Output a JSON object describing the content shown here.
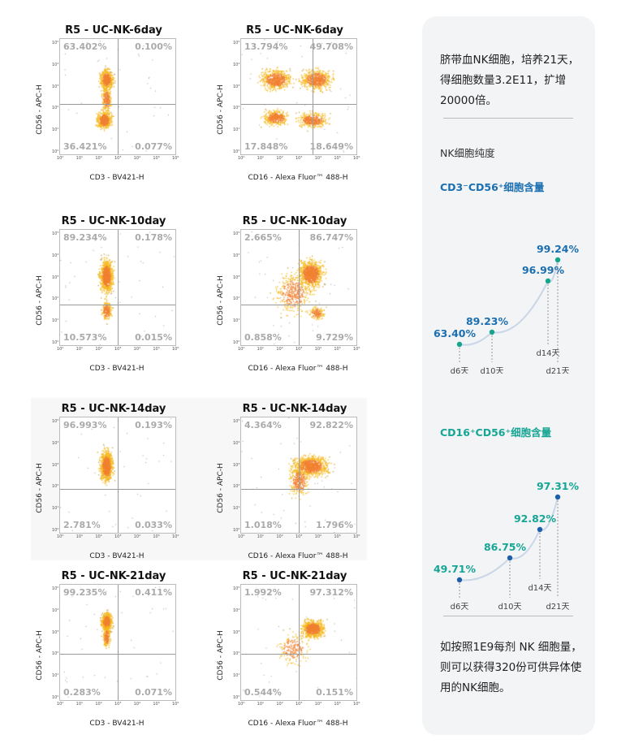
{
  "plots": [
    {
      "title": "R5 - UC-NK-6day",
      "x_label": "CD3 - BV421-H",
      "y_label": "CD56 - APC-H",
      "quadrants": [
        "63.402%",
        "0.100%",
        "36.421%",
        "0.077%"
      ]
    },
    {
      "title": "R5 - UC-NK-6day",
      "x_label": "CD16 - Alexa Fluor™ 488-H",
      "y_label": "CD56 - APC-H",
      "quadrants": [
        "13.794%",
        "49.708%",
        "17.848%",
        "18.649%"
      ]
    },
    {
      "title": "R5 - UC-NK-10day",
      "x_label": "CD3 - BV421-H",
      "y_label": "CD56 - APC-H",
      "quadrants": [
        "89.234%",
        "0.178%",
        "10.573%",
        "0.015%"
      ]
    },
    {
      "title": "R5 - UC-NK-10day",
      "x_label": "CD16 - Alexa Fluor™ 488-H",
      "y_label": "CD56 - APC-H",
      "quadrants": [
        "2.665%",
        "86.747%",
        "0.858%",
        "9.729%"
      ]
    },
    {
      "title": "R5 - UC-NK-14day",
      "x_label": "CD3 - BV421-H",
      "y_label": "CD56 - APC-H",
      "quadrants": [
        "96.993%",
        "0.193%",
        "2.781%",
        "0.033%"
      ]
    },
    {
      "title": "R5 - UC-NK-14day",
      "x_label": "CD16 - Alexa Fluor™ 488-H",
      "y_label": "CD56 - APC-H",
      "quadrants": [
        "4.364%",
        "92.822%",
        "1.018%",
        "1.796%"
      ]
    },
    {
      "title": "R5 - UC-NK-21day",
      "x_label": "CD3 - BV421-H",
      "y_label": "CD56 - APC-H",
      "quadrants": [
        "99.235%",
        "0.411%",
        "0.283%",
        "0.071%"
      ]
    },
    {
      "title": "R5 - UC-NK-21day",
      "x_label": "CD16 - Alexa Fluor™ 488-H",
      "y_label": "CD56 - APC-H",
      "quadrants": [
        "1.992%",
        "97.312%",
        "0.544%",
        "0.151%"
      ]
    }
  ],
  "x_ticks": [
    "10⁰",
    "10¹",
    "10²",
    "10³",
    "10⁴",
    "10⁵",
    "10⁶"
  ],
  "y_ticks": [
    "10⁰",
    "10¹",
    "10²",
    "10³",
    "10⁴",
    "10⁵"
  ],
  "panel": {
    "intro": "脐带血NK细胞，培养21天，得细胞数量3.2E11，扩增20000倍。",
    "purity_label": "NK细胞纯度",
    "footer": "如按照1E9每剂 NK 细胞量，则可以获得320份可供异体使用的NK细胞。"
  },
  "chart_data": [
    {
      "type": "line",
      "title": "CD3⁻CD56⁺细胞含量",
      "categories": [
        "d6天",
        "d10天",
        "d14天",
        "d21天"
      ],
      "values": [
        63.4,
        89.23,
        96.99,
        99.24
      ],
      "labels": [
        "63.40%",
        "89.23%",
        "96.99%",
        "99.24%"
      ],
      "label_color": "#1b6fb0",
      "dot_color": "#14a58a"
    },
    {
      "type": "line",
      "title": "CD16⁺CD56⁺细胞含量",
      "categories": [
        "d6天",
        "d10天",
        "d14天",
        "d21天"
      ],
      "values": [
        49.71,
        86.75,
        92.82,
        97.31
      ],
      "labels": [
        "49.71%",
        "86.75%",
        "92.82%",
        "97.31%"
      ],
      "label_color": "#17a595",
      "dot_color": "#1d5fa8"
    }
  ]
}
